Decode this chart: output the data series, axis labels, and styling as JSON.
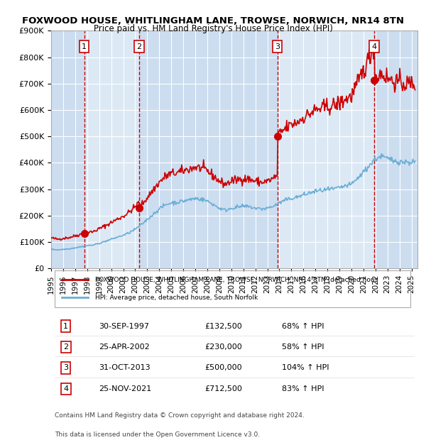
{
  "title1": "FOXWOOD HOUSE, WHITLINGHAM LANE, TROWSE, NORWICH, NR14 8TN",
  "title2": "Price paid vs. HM Land Registry's House Price Index (HPI)",
  "legend_line1": "FOXWOOD HOUSE, WHITLINGHAM LANE, TROWSE, NORWICH, NR14 8TN (detached hous",
  "legend_line2": "HPI: Average price, detached house, South Norfolk",
  "footer1": "Contains HM Land Registry data © Crown copyright and database right 2024.",
  "footer2": "This data is licensed under the Open Government Licence v3.0.",
  "purchases": [
    {
      "num": 1,
      "date": "30-SEP-1997",
      "price": 132500,
      "pct": "68%",
      "year_x": 1997.75
    },
    {
      "num": 2,
      "date": "25-APR-2002",
      "price": 230000,
      "pct": "58%",
      "year_x": 2002.32
    },
    {
      "num": 3,
      "date": "31-OCT-2013",
      "price": 500000,
      "pct": "104%",
      "year_x": 2013.83
    },
    {
      "num": 4,
      "date": "25-NOV-2021",
      "price": 712500,
      "pct": "83%",
      "year_x": 2021.9
    }
  ],
  "hpi_color": "#6baed6",
  "property_color": "#cc0000",
  "bg_color": "#dce9f5",
  "plot_bg": "#dce9f5",
  "grid_color": "#ffffff",
  "dashed_color": "#cc0000",
  "purchase_dot_color": "#cc0000",
  "ylim": [
    0,
    900000
  ],
  "xlim_start": 1995.0,
  "xlim_end": 2025.5
}
